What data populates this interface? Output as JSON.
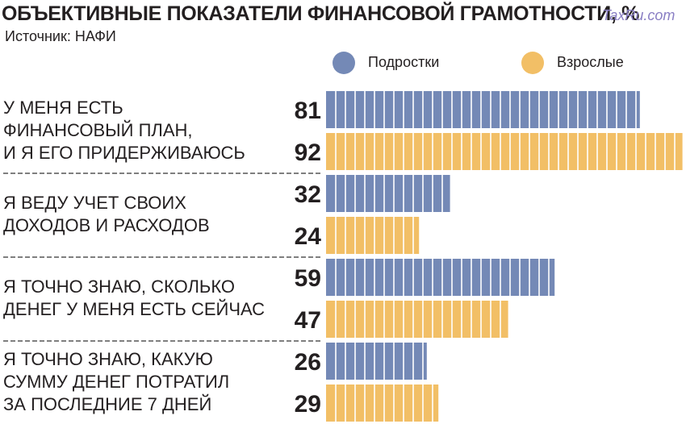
{
  "header": {
    "title": "ОБЪЕКТИВНЫЕ ПОКАЗАТЕЛИ ФИНАНСОВОЙ ГРАМОТНОСТИ, %",
    "source": "Источник: НАФИ",
    "watermark": "TaxRu.com"
  },
  "colors": {
    "teens": "#7489b6",
    "adults": "#f2bf66",
    "text": "#231f20",
    "divider": "#555555"
  },
  "chart_data": {
    "type": "bar",
    "orientation": "horizontal",
    "title": "ОБЪЕКТИВНЫЕ ПОКАЗАТЕЛИ ФИНАНСОВОЙ ГРАМОТНОСТИ, %",
    "xlim": [
      0,
      100
    ],
    "legend_position": "top-right",
    "categories": [
      [
        "У МЕНЯ ЕСТЬ",
        "ФИНАНСОВЫЙ ПЛАН,",
        "И Я ЕГО ПРИДЕРЖИВАЮСЬ"
      ],
      [
        "Я ВЕДУ УЧЕТ СВОИХ",
        "ДОХОДОВ И РАСХОДОВ"
      ],
      [
        "Я ТОЧНО ЗНАЮ, СКОЛЬКО",
        "ДЕНЕГ У МЕНЯ ЕСТЬ СЕЙЧАС"
      ],
      [
        "Я ТОЧНО ЗНАЮ, КАКУЮ",
        "СУММУ ДЕНЕГ ПОТРАТИЛ",
        "ЗА ПОСЛЕДНИЕ 7 ДНЕЙ"
      ]
    ],
    "series": [
      {
        "name": "Подростки",
        "values": [
          81,
          32,
          59,
          26
        ]
      },
      {
        "name": "Взрослые",
        "values": [
          92,
          24,
          47,
          29
        ]
      }
    ]
  }
}
